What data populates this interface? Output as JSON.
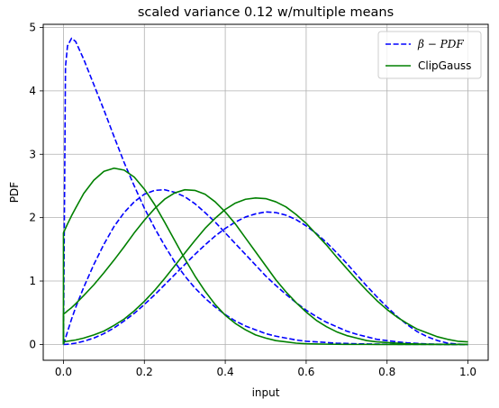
{
  "chart_data": {
    "type": "line",
    "title": "scaled variance 0.12 w/multiple means",
    "xlabel": "input",
    "ylabel": "PDF",
    "xlim": [
      -0.05,
      1.05
    ],
    "ylim": [
      -0.25,
      5.05
    ],
    "xticks": [
      0.0,
      0.2,
      0.4,
      0.6,
      0.8,
      1.0
    ],
    "xtick_labels": [
      "0.0",
      "0.2",
      "0.4",
      "0.6",
      "0.8",
      "1.0"
    ],
    "yticks": [
      0,
      1,
      2,
      3,
      4,
      5
    ],
    "ytick_labels": [
      "0",
      "1",
      "2",
      "3",
      "4",
      "5"
    ],
    "grid": true,
    "legend": {
      "placement": "top-right",
      "entries": [
        {
          "label_prefix": "β",
          "label_main": " − PDF",
          "color": "#0000ff",
          "style": "dashed"
        },
        {
          "label": "ClipGauss",
          "color": "#008000",
          "style": "solid"
        }
      ]
    },
    "x": [
      0.0,
      0.005,
      0.01,
      0.02,
      0.03,
      0.05,
      0.075,
      0.1,
      0.125,
      0.15,
      0.175,
      0.2,
      0.225,
      0.25,
      0.275,
      0.3,
      0.325,
      0.35,
      0.375,
      0.4,
      0.425,
      0.45,
      0.475,
      0.5,
      0.525,
      0.55,
      0.575,
      0.6,
      0.625,
      0.65,
      0.675,
      0.7,
      0.725,
      0.75,
      0.775,
      0.8,
      0.825,
      0.85,
      0.875,
      0.9,
      0.925,
      0.95,
      0.975,
      1.0
    ],
    "series": [
      {
        "group": "beta",
        "mean": 0.15,
        "values": [
          0.0,
          4.38,
          4.71,
          4.83,
          4.78,
          4.5,
          4.1,
          3.7,
          3.28,
          2.87,
          2.5,
          2.15,
          1.84,
          1.56,
          1.3,
          1.08,
          0.89,
          0.73,
          0.59,
          0.47,
          0.37,
          0.29,
          0.23,
          0.17,
          0.13,
          0.1,
          0.07,
          0.05,
          0.04,
          0.03,
          0.02,
          0.015,
          0.01,
          0.007,
          0.005,
          0.003,
          0.002,
          0.001,
          0.0008,
          0.0005,
          0.0003,
          0.0001,
          0.0,
          0.0
        ]
      },
      {
        "group": "beta",
        "mean": 0.3,
        "values": [
          0.0,
          0.1,
          0.2,
          0.4,
          0.58,
          0.9,
          1.26,
          1.58,
          1.86,
          2.08,
          2.25,
          2.37,
          2.43,
          2.44,
          2.4,
          2.33,
          2.22,
          2.08,
          1.93,
          1.76,
          1.59,
          1.42,
          1.25,
          1.08,
          0.93,
          0.79,
          0.66,
          0.54,
          0.44,
          0.35,
          0.28,
          0.21,
          0.16,
          0.12,
          0.08,
          0.06,
          0.04,
          0.025,
          0.015,
          0.008,
          0.004,
          0.002,
          0.0005,
          0.0
        ]
      },
      {
        "group": "beta",
        "mean": 0.5,
        "values": [
          0.0,
          0.001,
          0.003,
          0.01,
          0.02,
          0.05,
          0.1,
          0.17,
          0.26,
          0.37,
          0.49,
          0.63,
          0.78,
          0.94,
          1.1,
          1.26,
          1.42,
          1.57,
          1.71,
          1.83,
          1.93,
          2.01,
          2.06,
          2.09,
          2.08,
          2.04,
          1.97,
          1.87,
          1.75,
          1.61,
          1.45,
          1.28,
          1.1,
          0.92,
          0.75,
          0.59,
          0.44,
          0.31,
          0.2,
          0.12,
          0.06,
          0.02,
          0.005,
          0.0
        ]
      },
      {
        "group": "clip",
        "mean": 0.15,
        "values": [
          1.76,
          1.83,
          1.9,
          2.03,
          2.15,
          2.38,
          2.59,
          2.73,
          2.78,
          2.75,
          2.64,
          2.45,
          2.21,
          1.93,
          1.64,
          1.35,
          1.08,
          0.84,
          0.63,
          0.46,
          0.33,
          0.23,
          0.15,
          0.1,
          0.06,
          0.04,
          0.02,
          0.01,
          0.007,
          0.004,
          0.002,
          0.001,
          0.0005,
          0.0003,
          0.0001,
          0.0,
          0.0,
          0.0,
          0.0,
          0.0,
          0.0,
          0.0,
          0.0,
          0.0
        ]
      },
      {
        "group": "clip",
        "mean": 0.3,
        "values": [
          0.48,
          0.5,
          0.53,
          0.58,
          0.64,
          0.77,
          0.94,
          1.13,
          1.33,
          1.54,
          1.76,
          1.96,
          2.14,
          2.29,
          2.39,
          2.44,
          2.43,
          2.37,
          2.25,
          2.09,
          1.9,
          1.68,
          1.46,
          1.24,
          1.02,
          0.83,
          0.66,
          0.51,
          0.38,
          0.28,
          0.2,
          0.14,
          0.1,
          0.06,
          0.04,
          0.03,
          0.02,
          0.01,
          0.006,
          0.003,
          0.002,
          0.001,
          0.0005,
          0.0003
        ]
      },
      {
        "group": "clip",
        "mean": 0.5,
        "values": [
          0.04,
          0.045,
          0.05,
          0.06,
          0.07,
          0.1,
          0.15,
          0.21,
          0.3,
          0.4,
          0.53,
          0.68,
          0.85,
          1.04,
          1.24,
          1.44,
          1.64,
          1.83,
          1.99,
          2.13,
          2.23,
          2.29,
          2.31,
          2.3,
          2.25,
          2.17,
          2.05,
          1.91,
          1.74,
          1.57,
          1.38,
          1.2,
          1.02,
          0.85,
          0.69,
          0.55,
          0.43,
          0.33,
          0.24,
          0.18,
          0.12,
          0.08,
          0.05,
          0.04
        ]
      }
    ]
  }
}
